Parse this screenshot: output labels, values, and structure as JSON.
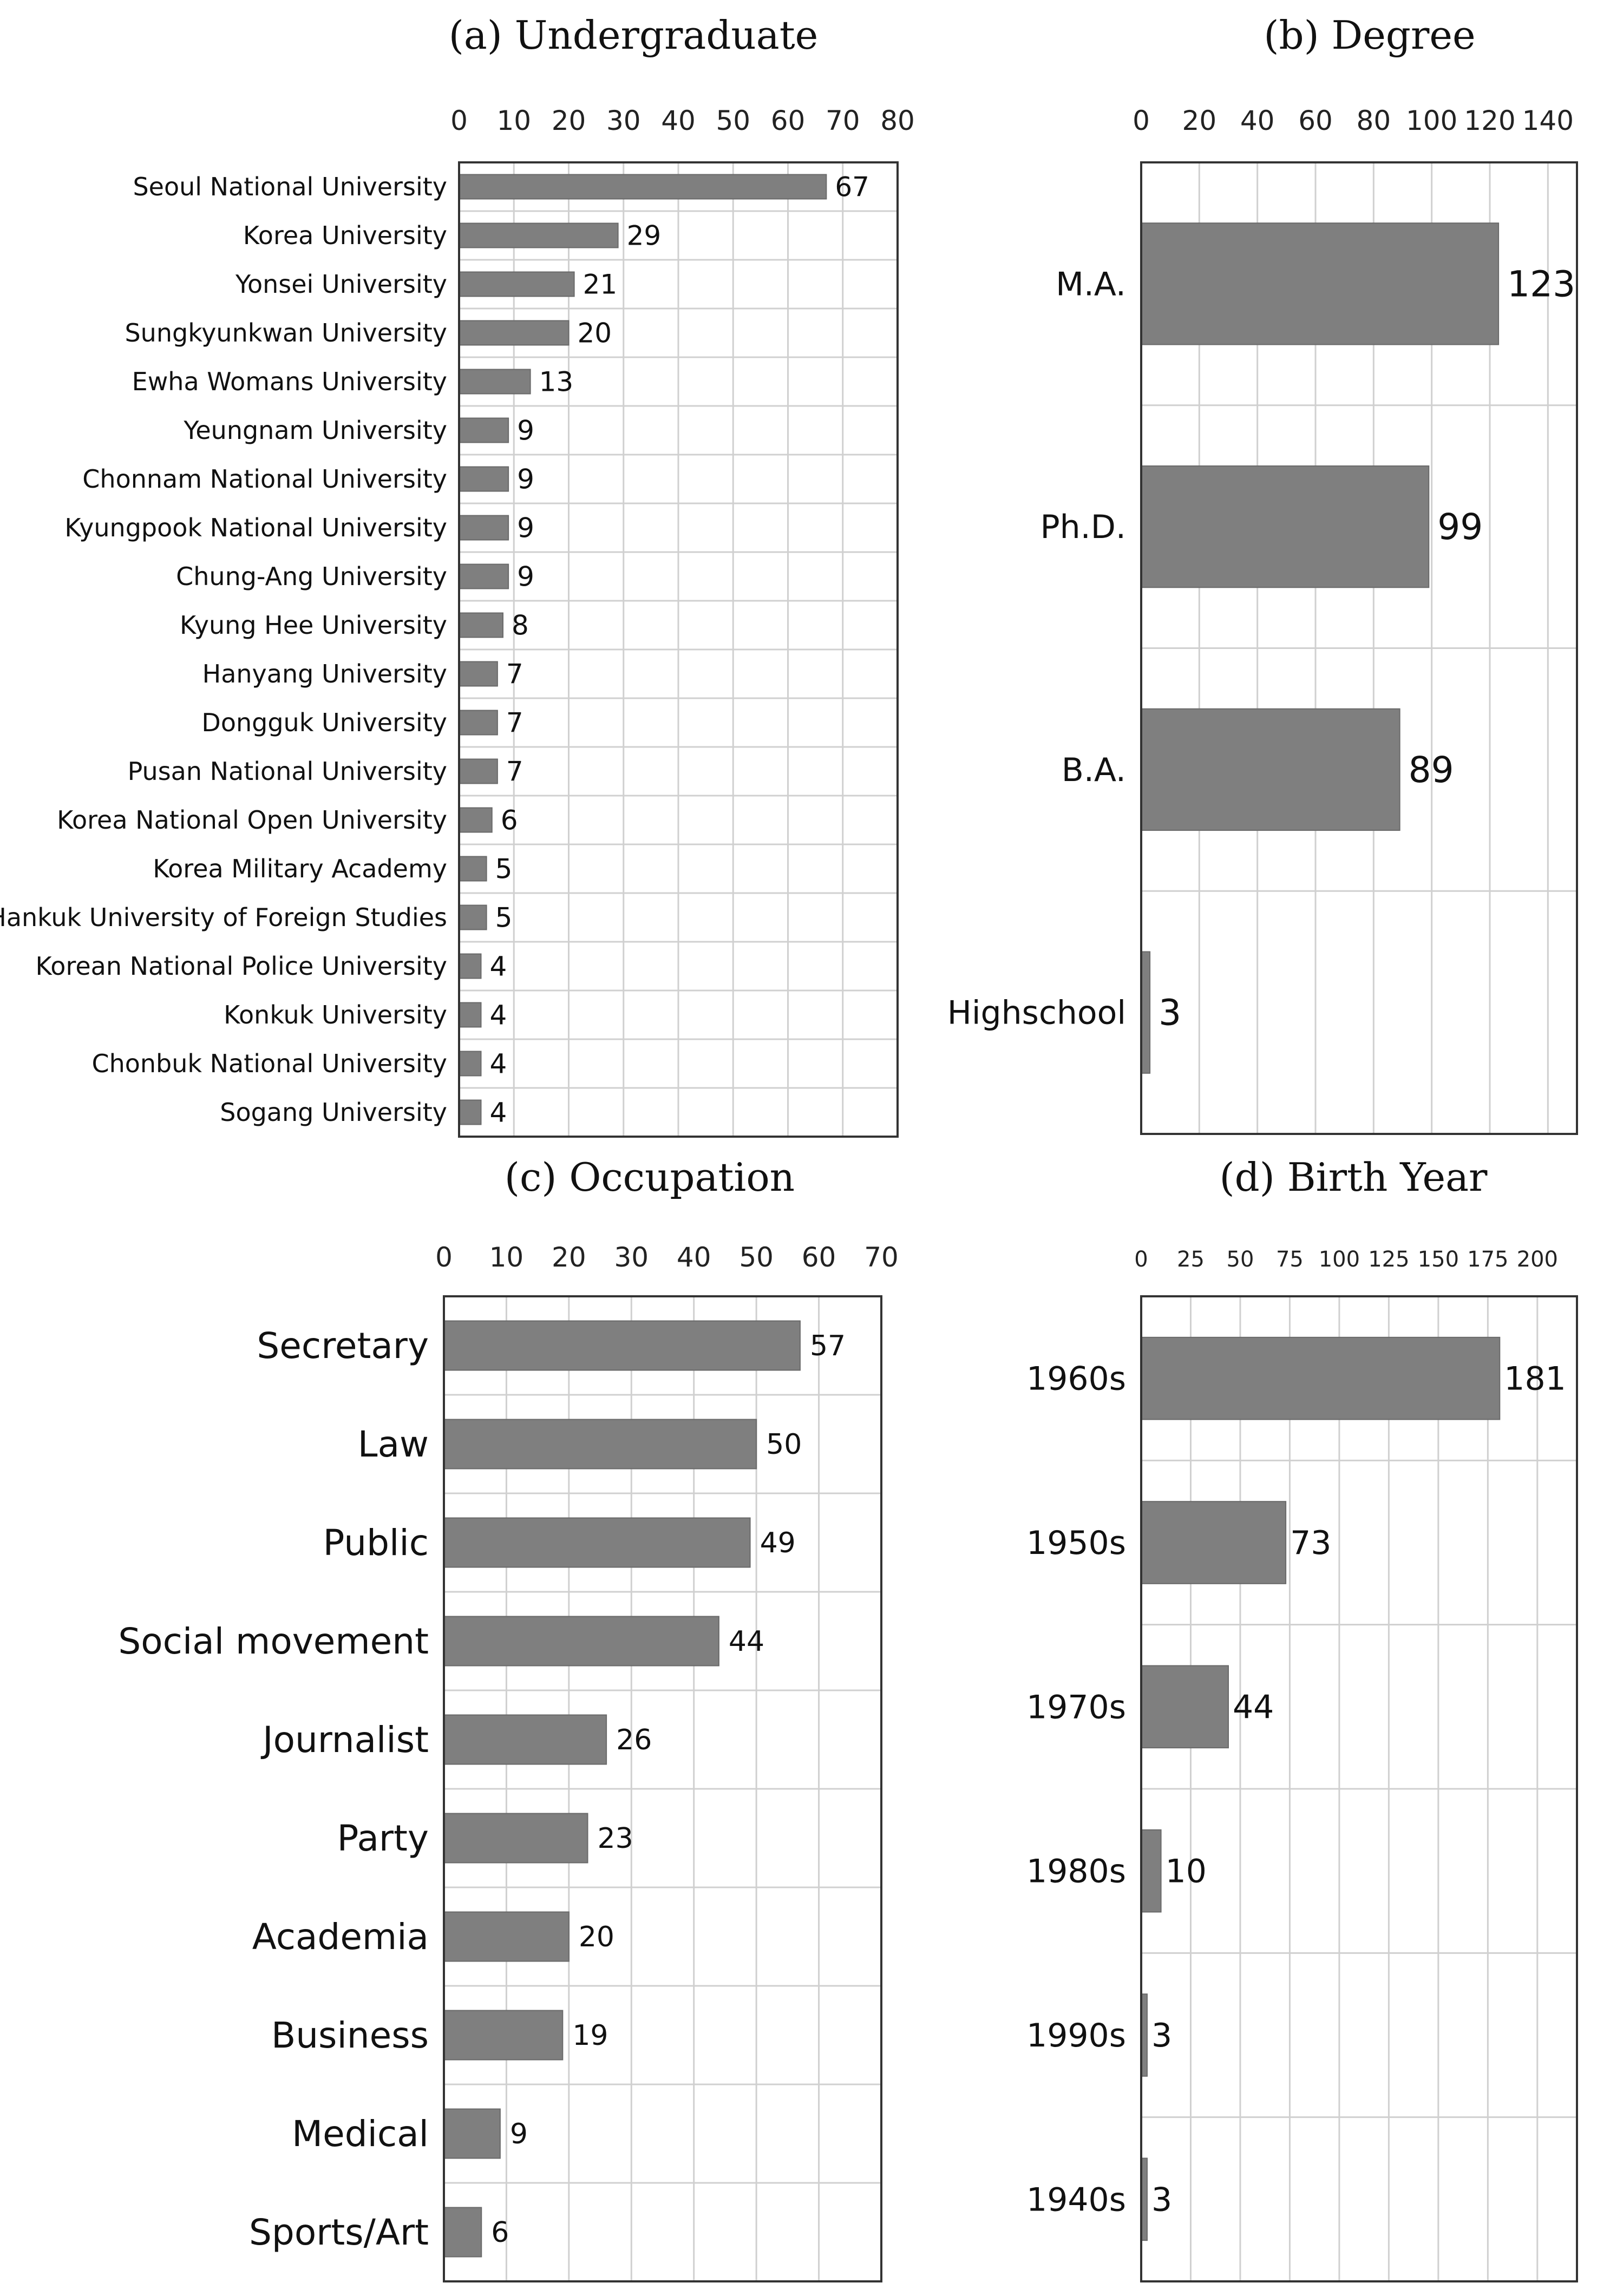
{
  "chart_data": [
    {
      "type": "bar",
      "orientation": "horizontal",
      "title": "(a) Undergraduate",
      "categories": [
        "Seoul National University",
        "Korea University",
        "Yonsei University",
        "Sungkyunkwan University",
        "Ewha Womans University",
        "Yeungnam University",
        "Chonnam National University",
        "Kyungpook National University",
        "Chung-Ang University",
        "Kyung Hee University",
        "Hanyang University",
        "Dongguk University",
        "Pusan National University",
        "Korea National Open University",
        "Korea Military Academy",
        "Hankuk University of Foreign Studies",
        "Korean National Police University",
        "Konkuk University",
        "Chonbuk National University",
        "Sogang University"
      ],
      "values": [
        67,
        29,
        21,
        20,
        13,
        9,
        9,
        9,
        9,
        8,
        7,
        7,
        7,
        6,
        5,
        5,
        4,
        4,
        4,
        4
      ],
      "xlim": [
        0,
        80
      ],
      "ticks": [
        0,
        10,
        20,
        30,
        40,
        50,
        60,
        70,
        80
      ],
      "xaxis_position": "top",
      "grid": true
    },
    {
      "type": "bar",
      "orientation": "horizontal",
      "title": "(b) Degree",
      "categories": [
        "M.A.",
        "Ph.D.",
        "B.A.",
        "Highschool"
      ],
      "values": [
        123,
        99,
        89,
        3
      ],
      "xlim": [
        0,
        150
      ],
      "ticks": [
        0,
        20,
        40,
        60,
        80,
        100,
        120,
        140
      ],
      "xaxis_position": "top",
      "grid": true
    },
    {
      "type": "bar",
      "orientation": "horizontal",
      "title": "(c) Occupation",
      "categories": [
        "Secretary",
        "Law",
        "Public",
        "Social movement",
        "Journalist",
        "Party",
        "Academia",
        "Business",
        "Medical",
        "Sports/Art"
      ],
      "values": [
        57,
        50,
        49,
        44,
        26,
        23,
        20,
        19,
        9,
        6
      ],
      "xlim": [
        0,
        70
      ],
      "ticks": [
        0,
        10,
        20,
        30,
        40,
        50,
        60,
        70
      ],
      "xaxis_position": "top",
      "grid": true
    },
    {
      "type": "bar",
      "orientation": "horizontal",
      "title": "(d) Birth Year",
      "categories": [
        "1960s",
        "1950s",
        "1970s",
        "1980s",
        "1990s",
        "1940s"
      ],
      "values": [
        181,
        73,
        44,
        10,
        3,
        3
      ],
      "xlim": [
        0,
        220
      ],
      "ticks": [
        0,
        25,
        50,
        75,
        100,
        125,
        150,
        175,
        200
      ],
      "xaxis_position": "top",
      "grid": true
    }
  ]
}
